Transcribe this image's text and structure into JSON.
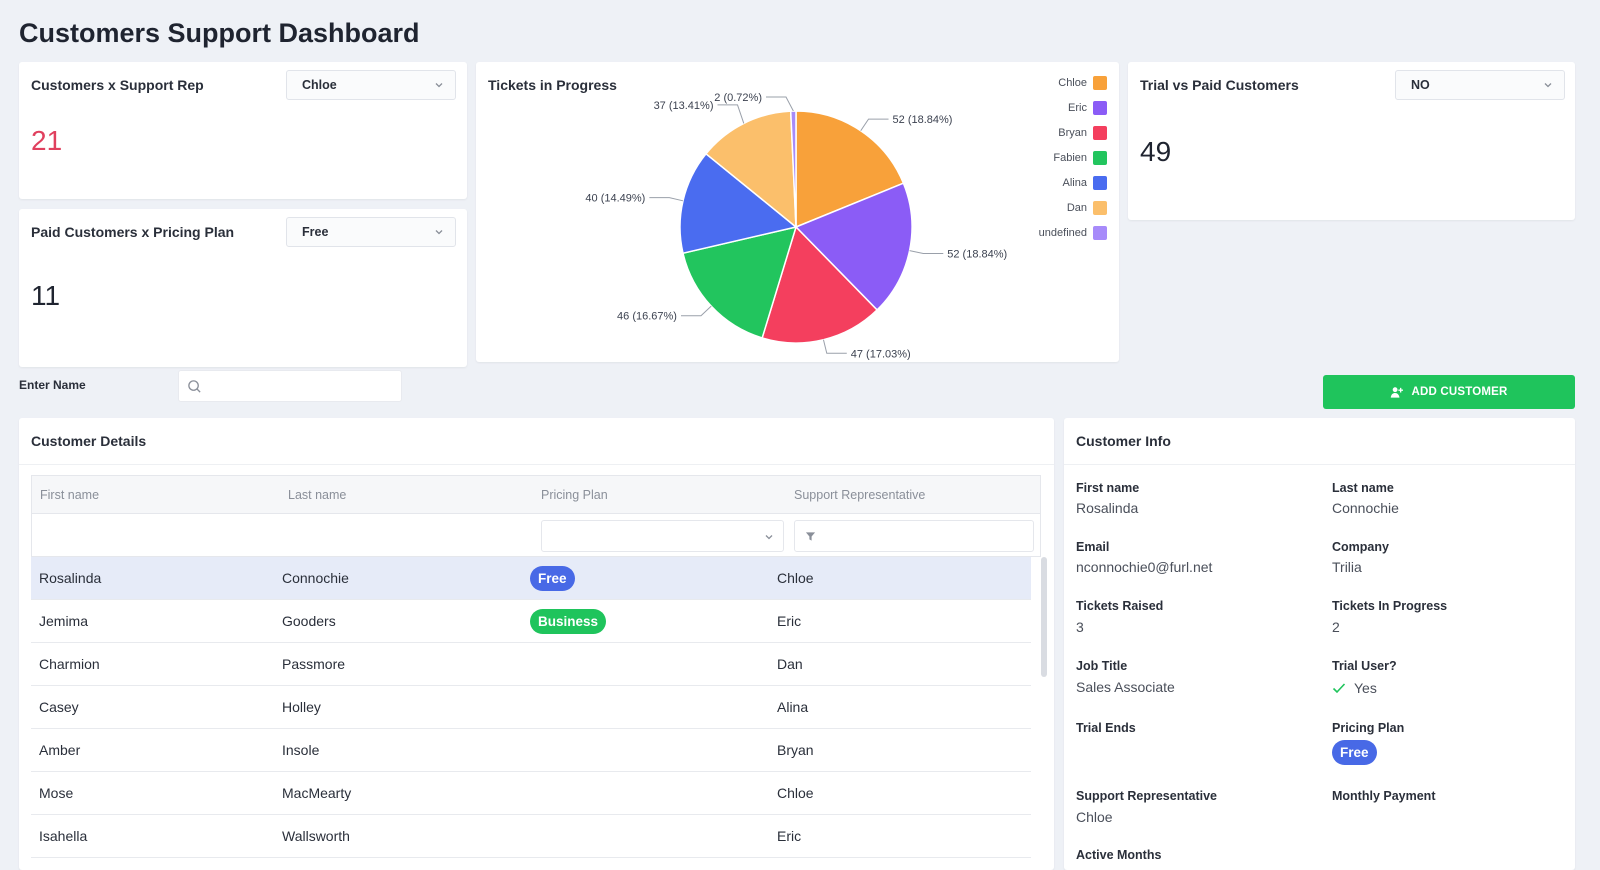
{
  "page_title": "Customers Support Dashboard",
  "support_rep_card": {
    "title": "Customers x Support Rep",
    "selected": "Chloe",
    "value": "21",
    "value_color": "#e0405e"
  },
  "pricing_card": {
    "title": "Paid Customers x Pricing Plan",
    "selected": "Free",
    "value": "11"
  },
  "trial_card": {
    "title": "Trial vs Paid Customers",
    "selected": "NO",
    "value": "49"
  },
  "tickets_chart": {
    "title": "Tickets in Progress",
    "legend": [
      {
        "name": "Chloe",
        "color": "#f8a13a"
      },
      {
        "name": "Eric",
        "color": "#8b5cf6"
      },
      {
        "name": "Bryan",
        "color": "#f43f5e"
      },
      {
        "name": "Fabien",
        "color": "#22c55e"
      },
      {
        "name": "Alina",
        "color": "#4a6cf0"
      },
      {
        "name": "Dan",
        "color": "#fbbf6b"
      },
      {
        "name": "undefined",
        "color": "#a78bfa"
      }
    ]
  },
  "chart_data": {
    "type": "pie",
    "title": "Tickets in Progress",
    "slices": [
      {
        "name": "Chloe",
        "value": 52,
        "label": "52 (18.84%)",
        "color": "#f8a13a"
      },
      {
        "name": "Eric",
        "value": 52,
        "label": "52 (18.84%)",
        "color": "#8b5cf6"
      },
      {
        "name": "Bryan",
        "value": 47,
        "label": "47 (17.03%)",
        "color": "#f43f5e"
      },
      {
        "name": "Fabien",
        "value": 46,
        "label": "46 (16.67%)",
        "color": "#22c55e"
      },
      {
        "name": "Alina",
        "value": 40,
        "label": "40 (14.49%)",
        "color": "#4a6cf0"
      },
      {
        "name": "Dan",
        "value": 37,
        "label": "37 (13.41%)",
        "color": "#fbbf6b"
      },
      {
        "name": "undefined",
        "value": 2,
        "label": "2 (0.72%)",
        "color": "#a78bfa"
      }
    ],
    "legend_position": "right"
  },
  "search": {
    "label": "Enter Name",
    "value": "",
    "placeholder": ""
  },
  "add_customer_label": "ADD CUSTOMER",
  "customer_details": {
    "title": "Customer Details",
    "columns": [
      "First name",
      "Last name",
      "Pricing Plan",
      "Support Representative"
    ],
    "rows": [
      {
        "first": "Rosalinda",
        "last": "Connochie",
        "plan": "Free",
        "rep": "Chloe"
      },
      {
        "first": "Jemima",
        "last": "Gooders",
        "plan": "Business",
        "rep": "Eric"
      },
      {
        "first": "Charmion",
        "last": "Passmore",
        "plan": "",
        "rep": "Dan"
      },
      {
        "first": "Casey",
        "last": "Holley",
        "plan": "",
        "rep": "Alina"
      },
      {
        "first": "Amber",
        "last": "Insole",
        "plan": "",
        "rep": "Bryan"
      },
      {
        "first": "Mose",
        "last": "MacMearty",
        "plan": "",
        "rep": "Chloe"
      },
      {
        "first": "Isahella",
        "last": "Wallsworth",
        "plan": "",
        "rep": "Eric"
      }
    ]
  },
  "customer_info": {
    "title": "Customer Info",
    "first_name_label": "First name",
    "first_name": "Rosalinda",
    "last_name_label": "Last name",
    "last_name": "Connochie",
    "email_label": "Email",
    "email": "nconnochie0@furl.net",
    "company_label": "Company",
    "company": "Trilia",
    "tickets_raised_label": "Tickets Raised",
    "tickets_raised": "3",
    "tickets_progress_label": "Tickets In Progress",
    "tickets_progress": "2",
    "job_title_label": "Job Title",
    "job_title": "Sales Associate",
    "trial_user_label": "Trial User?",
    "trial_user": "Yes",
    "trial_ends_label": "Trial Ends",
    "pricing_plan_label": "Pricing Plan",
    "pricing_plan": "Free",
    "support_rep_label": "Support Representative",
    "support_rep": "Chloe",
    "monthly_payment_label": "Monthly Payment",
    "active_months_label": "Active Months"
  }
}
